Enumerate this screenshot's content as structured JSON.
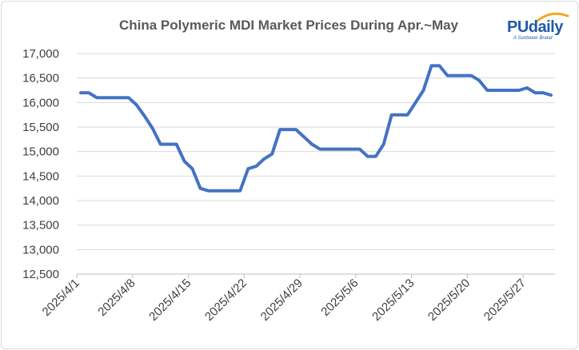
{
  "chart_data": {
    "type": "line",
    "title": "China Polymeric MDI Market Prices During Apr.~May",
    "xlabel": "",
    "ylabel": "",
    "ylim": [
      12500,
      17000
    ],
    "yticks": [
      "12,500",
      "13,000",
      "13,500",
      "14,000",
      "14,500",
      "15,000",
      "15,500",
      "16,000",
      "16,500",
      "17,000"
    ],
    "xticks": [
      "2025/4/1",
      "2025/4/8",
      "2025/4/15",
      "2025/4/22",
      "2025/4/29",
      "2025/5/6",
      "2025/5/13",
      "2025/5/20",
      "2025/5/27"
    ],
    "grid": true,
    "legend": "none",
    "color": "#4472c4",
    "series": [
      {
        "x": [
          "2025/4/1",
          "2025/4/2",
          "2025/4/3",
          "2025/4/4",
          "2025/4/5",
          "2025/4/6",
          "2025/4/7",
          "2025/4/8",
          "2025/4/9",
          "2025/4/10",
          "2025/4/11",
          "2025/4/12",
          "2025/4/13",
          "2025/4/14",
          "2025/4/15",
          "2025/4/16",
          "2025/4/17",
          "2025/4/18",
          "2025/4/19",
          "2025/4/20",
          "2025/4/21",
          "2025/4/22",
          "2025/4/23",
          "2025/4/24",
          "2025/4/25",
          "2025/4/26",
          "2025/4/27",
          "2025/4/28",
          "2025/4/29",
          "2025/4/30",
          "2025/5/1",
          "2025/5/2",
          "2025/5/3",
          "2025/5/4",
          "2025/5/5",
          "2025/5/6",
          "2025/5/7",
          "2025/5/8",
          "2025/5/9",
          "2025/5/10",
          "2025/5/11",
          "2025/5/12",
          "2025/5/13",
          "2025/5/14",
          "2025/5/15",
          "2025/5/16",
          "2025/5/17",
          "2025/5/18",
          "2025/5/19",
          "2025/5/20",
          "2025/5/21",
          "2025/5/22",
          "2025/5/23",
          "2025/5/24",
          "2025/5/25",
          "2025/5/26",
          "2025/5/27",
          "2025/5/28",
          "2025/5/29",
          "2025/5/30"
        ],
        "values": [
          16200,
          16200,
          16100,
          16100,
          16100,
          16100,
          16100,
          15950,
          15725,
          15475,
          15150,
          15150,
          15150,
          14800,
          14650,
          14250,
          14200,
          14200,
          14200,
          14200,
          14200,
          14650,
          14700,
          14850,
          14950,
          15450,
          15450,
          15450,
          15300,
          15150,
          15050,
          15050,
          15050,
          15050,
          15050,
          15050,
          14900,
          14900,
          15150,
          15750,
          15750,
          15750,
          16000,
          16250,
          16750,
          16750,
          16550,
          16550,
          16550,
          16550,
          16450,
          16250,
          16250,
          16250,
          16250,
          16250,
          16300,
          16200,
          16200,
          16150
        ]
      }
    ]
  },
  "logo": {
    "main": "PUdaily",
    "tagline": "A Suntower Brand"
  }
}
